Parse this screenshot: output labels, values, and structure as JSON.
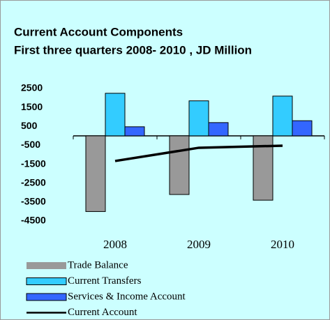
{
  "chart_data": {
    "type": "bar",
    "title": "Current Account Components",
    "subtitle": "First three quarters 2008- 2010 , JD Million",
    "categories": [
      "2008",
      "2009",
      "2010"
    ],
    "series": [
      {
        "name": "Trade Balance",
        "color": "#999999",
        "values": [
          -4000,
          -3100,
          -3400
        ]
      },
      {
        "name": "Current Transfers",
        "color": "#33ccff",
        "values": [
          2250,
          1850,
          2100
        ]
      },
      {
        "name": "Services & Income Account",
        "color": "#3366ff",
        "values": [
          480,
          700,
          800
        ]
      },
      {
        "name": "Current Account",
        "color": "#000000",
        "type": "line",
        "values": [
          -1330,
          -630,
          -520
        ]
      }
    ],
    "ylim": [
      -4500,
      2500
    ],
    "yticks": [
      2500,
      1500,
      500,
      -500,
      -1500,
      -2500,
      -3500,
      -4500
    ],
    "legend": "bottom"
  }
}
